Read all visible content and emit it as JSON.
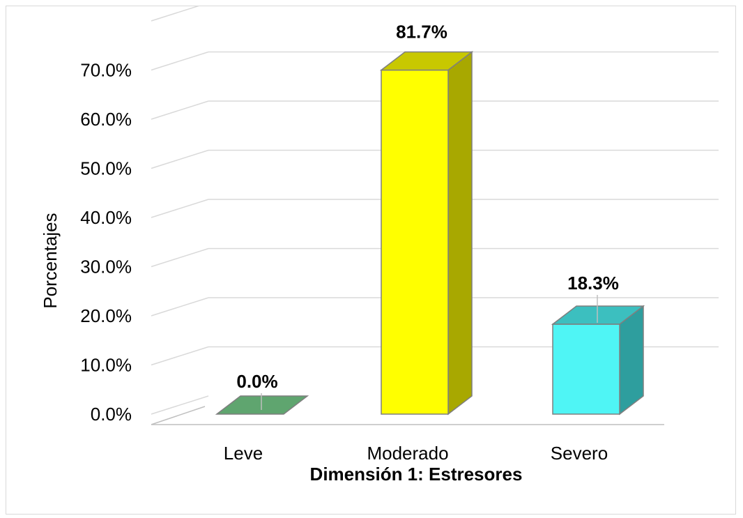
{
  "chart_data": {
    "type": "bar",
    "style": "3d-column",
    "categories": [
      "Leve",
      "Moderado",
      "Severo"
    ],
    "values": [
      0.0,
      81.7,
      18.3
    ],
    "data_labels": [
      "0.0%",
      "81.7%",
      "18.3%"
    ],
    "ylabel": "Porcentajes",
    "xlabel": "Dimensión 1: Estresores",
    "y_ticks": [
      "0.0%",
      "10.0%",
      "20.0%",
      "30.0%",
      "40.0%",
      "50.0%",
      "60.0%",
      "70.0%"
    ],
    "ylim": [
      0,
      70
    ],
    "grid": true,
    "legend": false,
    "colors": {
      "Leve": {
        "front": "#5fa56f",
        "side": "#4b8a5a",
        "top": "#5fa56f"
      },
      "Moderado": {
        "front": "#ffff00",
        "side": "#a8a800",
        "top": "#c8c800"
      },
      "Severo": {
        "front": "#4ff5f5",
        "side": "#2e9e9e",
        "top": "#3cbfbf"
      }
    }
  }
}
